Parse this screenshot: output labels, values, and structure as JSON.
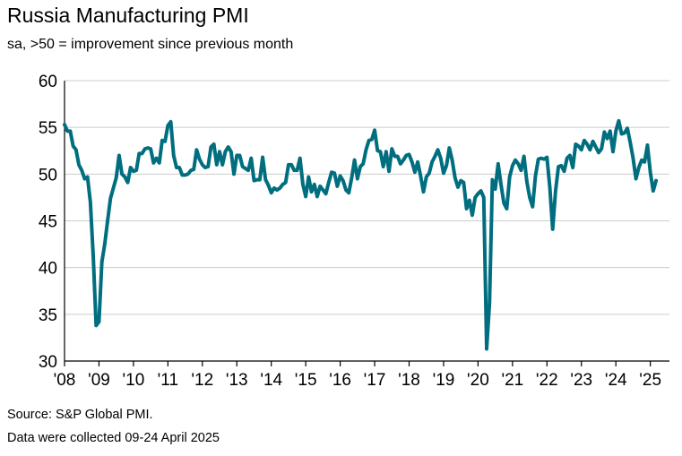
{
  "title": "Russia Manufacturing PMI",
  "subtitle": "sa, >50 = improvement since previous month",
  "footer": {
    "source": "Source: S&P Global PMI.",
    "collected": "Data were collected 09-24 April 2025"
  },
  "colors": {
    "line": "#006e7f",
    "grid": "#cccccc",
    "axis": "#000000"
  },
  "chart_data": {
    "type": "line",
    "title": "Russia Manufacturing PMI",
    "subtitle": "sa, >50 = improvement since previous month",
    "xlabel": "",
    "ylabel": "",
    "ylim": [
      30,
      60
    ],
    "yticks": [
      30,
      35,
      40,
      45,
      50,
      55,
      60
    ],
    "xticks": [
      {
        "label": "'08",
        "year": 2008
      },
      {
        "label": "'09",
        "year": 2009
      },
      {
        "label": "'10",
        "year": 2010
      },
      {
        "label": "'11",
        "year": 2011
      },
      {
        "label": "'12",
        "year": 2012
      },
      {
        "label": "'13",
        "year": 2013
      },
      {
        "label": "'14",
        "year": 2014
      },
      {
        "label": "'15",
        "year": 2015
      },
      {
        "label": "'16",
        "year": 2016
      },
      {
        "label": "'17",
        "year": 2017
      },
      {
        "label": "'18",
        "year": 2018
      },
      {
        "label": "'19",
        "year": 2019
      },
      {
        "label": "'20",
        "year": 2020
      },
      {
        "label": "'21",
        "year": 2021
      },
      {
        "label": "'22",
        "year": 2022
      },
      {
        "label": "'23",
        "year": 2023
      },
      {
        "label": "'24",
        "year": 2024
      },
      {
        "label": "'25",
        "year": 2025
      }
    ],
    "grid": "horizontal",
    "series": [
      {
        "name": "Russia Manufacturing PMI",
        "start": "2008-01",
        "frequency": "monthly",
        "values": [
          55.3,
          54.6,
          54.6,
          53.0,
          52.6,
          51.0,
          50.4,
          49.5,
          49.7,
          47.0,
          41.2,
          33.8,
          34.2,
          40.6,
          42.5,
          45.0,
          47.4,
          48.5,
          49.6,
          52.0,
          50.0,
          49.7,
          49.1,
          50.7,
          50.3,
          50.4,
          52.2,
          52.2,
          52.7,
          52.8,
          52.7,
          51.2,
          51.7,
          51.2,
          53.6,
          53.5,
          55.2,
          55.6,
          52.0,
          50.7,
          50.7,
          49.9,
          49.9,
          50.0,
          50.4,
          50.5,
          52.6,
          51.6,
          51.0,
          50.7,
          50.8,
          52.9,
          53.2,
          51.0,
          52.4,
          51.0,
          52.4,
          52.9,
          52.4,
          50.0,
          52.0,
          52.0,
          50.8,
          50.6,
          50.4,
          51.7,
          49.3,
          49.4,
          49.4,
          51.8,
          49.4,
          48.8,
          48.0,
          48.5,
          48.3,
          48.5,
          48.9,
          49.1,
          51.0,
          51.0,
          50.4,
          50.4,
          51.7,
          48.9,
          47.6,
          49.7,
          48.1,
          48.9,
          47.6,
          48.7,
          48.3,
          47.9,
          49.1,
          50.2,
          50.1,
          48.7,
          49.8,
          49.3,
          48.3,
          48.0,
          49.6,
          51.5,
          49.5,
          50.8,
          51.1,
          52.6,
          53.6,
          53.7,
          54.7,
          52.5,
          52.4,
          50.8,
          52.4,
          50.3,
          52.7,
          51.9,
          51.9,
          51.1,
          51.5,
          52.0,
          52.1,
          51.3,
          50.2,
          51.3,
          49.8,
          48.1,
          49.7,
          50.1,
          51.3,
          51.9,
          52.6,
          51.7,
          50.1,
          50.9,
          52.8,
          51.5,
          49.6,
          48.6,
          49.3,
          49.1,
          46.3,
          47.2,
          45.6,
          47.5,
          47.9,
          48.2,
          47.5,
          31.3,
          36.2,
          49.4,
          48.4,
          51.1,
          48.9,
          46.9,
          46.3,
          49.7,
          50.9,
          51.5,
          51.1,
          50.4,
          51.9,
          49.2,
          47.5,
          46.5,
          49.8,
          51.6,
          51.7,
          51.6,
          51.8,
          48.6,
          44.1,
          48.2,
          50.8,
          50.9,
          50.3,
          51.7,
          52.0,
          50.7,
          53.2,
          53.0,
          52.6,
          53.6,
          53.2,
          52.6,
          53.5,
          52.9,
          52.3,
          52.7,
          54.5,
          53.8,
          54.6,
          52.4,
          54.6,
          55.7,
          54.3,
          54.4,
          54.9,
          53.4,
          51.7,
          49.5,
          50.7,
          51.5,
          51.3,
          53.1,
          50.2,
          48.2,
          49.3
        ]
      }
    ]
  }
}
